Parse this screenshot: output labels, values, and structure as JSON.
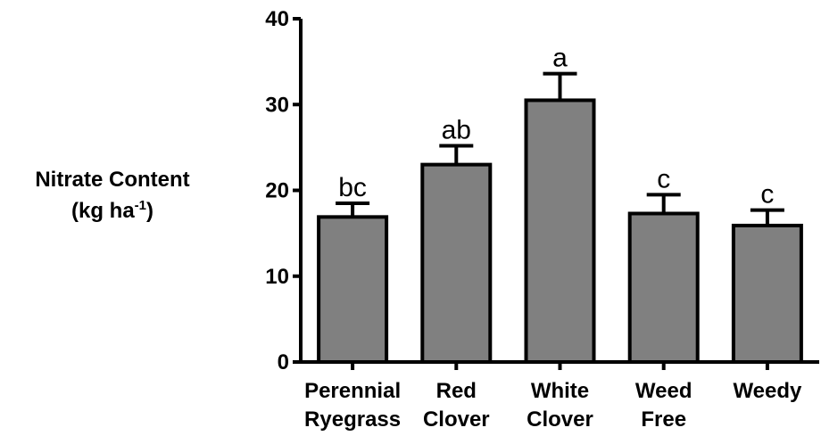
{
  "chart_data": {
    "type": "bar",
    "ylabel_line1": "Nitrate Content",
    "ylabel_line2_prefix": "(kg ha",
    "ylabel_line2_sup": "-1",
    "ylabel_line2_suffix": ")",
    "ylim": [
      0,
      40
    ],
    "yticks": [
      0,
      10,
      20,
      30,
      40
    ],
    "categories": [
      [
        "Perennial",
        "Ryegrass"
      ],
      [
        "Red",
        "Clover"
      ],
      [
        "White",
        "Clover"
      ],
      [
        "Weed",
        "Free"
      ],
      [
        "Weedy"
      ]
    ],
    "values": [
      16.9,
      23.0,
      30.5,
      17.3,
      15.9
    ],
    "errors": [
      1.6,
      2.2,
      3.1,
      2.2,
      1.8
    ],
    "significance_letters": [
      "bc",
      "ab",
      "a",
      "c",
      "c"
    ],
    "bar_color": "#808080",
    "grid": false
  }
}
